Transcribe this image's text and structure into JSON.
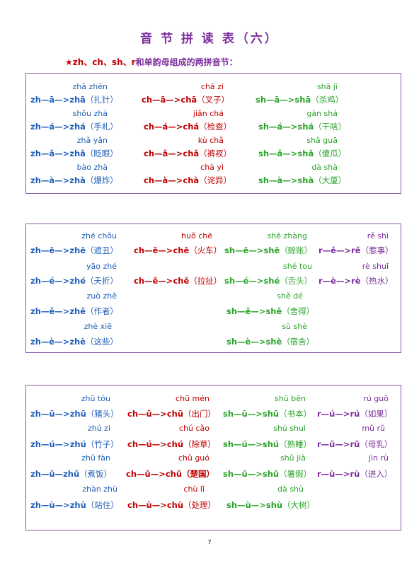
{
  "title": "音 节 拼 读 表（六）",
  "subtitle": {
    "star": "★",
    "letters": "zh、ch、sh、r",
    "rest": "和单韵母组成的两拼音节："
  },
  "page_number": "7",
  "box1": {
    "rows": [
      [
        {
          "py": "zhā zhēn",
          "eq": "zh—ā—>zhā",
          "w": "（扎针）",
          "color": "blue"
        },
        {
          "py": "chā zi",
          "eq": "ch—ā—>chā",
          "w": "（叉子）",
          "color": "red"
        },
        {
          "py": "shā jī",
          "eq": "sh—ā—>shā",
          "w": "（杀鸡）",
          "color": "green"
        }
      ],
      [
        {
          "py": "shǒu zhá",
          "eq": "zh—á—>zhá",
          "w": "（手札）",
          "color": "blue"
        },
        {
          "py": "jiǎn chá",
          "eq": "ch—á—>chá",
          "w": "（检查）",
          "color": "red"
        },
        {
          "py": "gàn shá",
          "eq": "sh—á—>shá",
          "w": "（干啥）",
          "color": "green"
        }
      ],
      [
        {
          "py": "zhǎ yǎn",
          "eq": "zh—ǎ—>zhǎ",
          "w": "（眨眼）",
          "color": "blue"
        },
        {
          "py": "kù chǎ",
          "eq": "ch—ǎ—>chǎ",
          "w": "（裤衩）",
          "color": "red"
        },
        {
          "py": "shǎ guā",
          "eq": "sh—ǎ—>shǎ",
          "w": "（傻瓜）",
          "color": "green"
        }
      ],
      [
        {
          "py": "bào zhà",
          "eq": "zh—à—>zhà",
          "w": "（爆炸）",
          "color": "blue"
        },
        {
          "py": "chà yì",
          "eq": "ch—à—>chà",
          "w": "（诧异）",
          "color": "red"
        },
        {
          "py": "dà shà",
          "eq": "sh—à—>shà",
          "w": "（大厦）",
          "color": "green"
        }
      ]
    ]
  },
  "box2": {
    "rows": [
      [
        {
          "py": "zhē chǒu",
          "eq": "zh—ē—>zhē",
          "w": "（遮丑）",
          "color": "blue"
        },
        {
          "py": "huǒ chē",
          "eq": "ch—ē—>chē",
          "w": "（火车）",
          "color": "red"
        },
        {
          "py": "shē zhàng",
          "eq": "sh—ē—>shē",
          "w": "（赊账）",
          "color": "green"
        },
        {
          "py": "rě shì",
          "eq": "r—ě—>rě",
          "w": "（惹事）",
          "color": "purple"
        }
      ],
      [
        {
          "py": "yāo zhé",
          "eq": "zh—é—>zhé",
          "w": "（夭折）",
          "color": "blue"
        },
        {
          "py": "",
          "eq": "ch—ě—>chě",
          "w": "（拉扯）",
          "color": "red"
        },
        {
          "py": "shé tou",
          "eq": "sh—é—>shé",
          "w": "（舌头）",
          "color": "green"
        },
        {
          "py": "rè shuǐ",
          "eq": "r—è—>rè",
          "w": "（热水）",
          "color": "purple"
        }
      ],
      [
        {
          "py": "zuò zhě",
          "eq": "zh—ě—>zhě",
          "w": "（作者）",
          "color": "blue"
        },
        {
          "py": "shě dé",
          "eq": "sh—ě—>shě",
          "w": "（舍得）",
          "color": "green"
        }
      ],
      [
        {
          "py": "zhè xiē",
          "eq": "zh—è—>zhè",
          "w": "（这些）",
          "color": "blue"
        },
        {
          "py": "sù shè",
          "eq": "sh—è—>shè",
          "w": "（宿舍）",
          "color": "green"
        }
      ]
    ]
  },
  "box3": {
    "rows": [
      [
        {
          "py": "zhū tóu",
          "eq": "zh—ū—>zhū",
          "w": "（猪头）",
          "color": "blue"
        },
        {
          "py": "chū mén",
          "eq": "ch—ū—>chū",
          "w": "（出门）",
          "color": "red"
        },
        {
          "py": "shū běn",
          "eq": "sh—ū—>shū",
          "w": "（书本）",
          "color": "green"
        },
        {
          "py": "rú guǒ",
          "eq": "r—ú—>rú",
          "w": "（如果）",
          "color": "purple"
        }
      ],
      [
        {
          "py": "zhú zi",
          "eq": "zh—ú—>zhú",
          "w": "（竹子）",
          "color": "blue"
        },
        {
          "py": "chú cǎo",
          "eq": "ch—ú—>chú",
          "w": "（除草）",
          "color": "red"
        },
        {
          "py": "shú shuì",
          "eq": "sh—ú—>shú",
          "w": "（熟睡）",
          "color": "green"
        },
        {
          "py": "mǔ rǔ",
          "eq": "r—ǔ—>rǔ",
          "w": "（母乳）",
          "color": "purple"
        }
      ],
      [
        {
          "py": "zhǔ fàn",
          "eq": "zh—ǔ—zhǔ",
          "w": "（煮饭）",
          "color": "blue"
        },
        {
          "py": "chǔ guó",
          "eq": "ch—ǔ—>chǔ",
          "w": "（楚国）",
          "color": "red"
        },
        {
          "py": "shǔ jià",
          "eq": "sh—ǔ—>shǔ",
          "w": "（暑假）",
          "color": "green"
        },
        {
          "py": "jìn rù",
          "eq": "r—ù—>rù",
          "w": "（进入）",
          "color": "purple"
        }
      ],
      [
        {
          "py": "zhàn zhù",
          "eq": "zh—ù—>zhù",
          "w": "（站住）",
          "color": "blue"
        },
        {
          "py": "chù lǐ",
          "eq": "ch—ù—>chù",
          "w": "（处理）",
          "color": "red"
        },
        {
          "py": "dà shù",
          "eq": "sh—ù—>shù",
          "w": "（大树）",
          "color": "green"
        }
      ]
    ]
  }
}
